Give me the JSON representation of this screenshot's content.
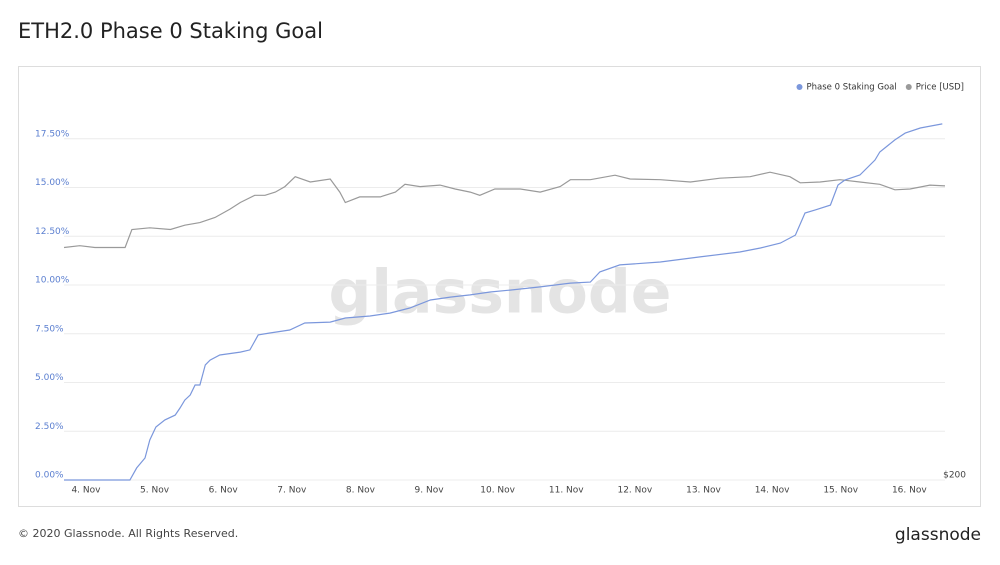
{
  "chart_data": {
    "type": "line",
    "title": "ETH2.0 Phase 0 Staking Goal",
    "watermark": "glassnode",
    "legend": "top-right",
    "grid": true,
    "xlim": [
      3.68,
      16.52
    ],
    "xticks": [
      {
        "value": 4,
        "label": "4. Nov"
      },
      {
        "value": 5,
        "label": "5. Nov"
      },
      {
        "value": 6,
        "label": "6. Nov"
      },
      {
        "value": 7,
        "label": "7. Nov"
      },
      {
        "value": 8,
        "label": "8. Nov"
      },
      {
        "value": 9,
        "label": "9. Nov"
      },
      {
        "value": 10,
        "label": "10. Nov"
      },
      {
        "value": 11,
        "label": "11. Nov"
      },
      {
        "value": 12,
        "label": "12. Nov"
      },
      {
        "value": 13,
        "label": "13. Nov"
      },
      {
        "value": 14,
        "label": "14. Nov"
      },
      {
        "value": 15,
        "label": "15. Nov"
      },
      {
        "value": 16,
        "label": "16. Nov"
      }
    ],
    "ylim": [
      0,
      20
    ],
    "yticks": [
      {
        "value": 0,
        "label": "0.00%"
      },
      {
        "value": 2.5,
        "label": "2.50%"
      },
      {
        "value": 5,
        "label": "5.00%"
      },
      {
        "value": 7.5,
        "label": "7.50%"
      },
      {
        "value": 10,
        "label": "10.00%"
      },
      {
        "value": 12.5,
        "label": "12.50%"
      },
      {
        "value": 15,
        "label": "15.00%"
      },
      {
        "value": 17.5,
        "label": "17.50%"
      }
    ],
    "y2lim": [
      200,
      600
    ],
    "y2log": true,
    "y2ticks": [
      {
        "value": 200,
        "label": "$200"
      }
    ],
    "series": [
      {
        "name": "Phase 0 Staking Goal",
        "color": "#7b97dc",
        "x": [
          3.68,
          4.64,
          4.74,
          4.86,
          4.93,
          5.02,
          5.15,
          5.3,
          5.37,
          5.44,
          5.52,
          5.59,
          5.66,
          5.74,
          5.81,
          5.95,
          6.25,
          6.39,
          6.51,
          6.68,
          6.97,
          7.19,
          7.56,
          7.78,
          8.14,
          8.43,
          8.72,
          9.02,
          9.31,
          9.6,
          9.89,
          10.18,
          10.62,
          11.06,
          11.35,
          11.49,
          11.78,
          12.37,
          12.95,
          13.53,
          13.83,
          14.12,
          14.34,
          14.48,
          14.63,
          14.85,
          14.96,
          15.06,
          15.28,
          15.5,
          15.57,
          15.79,
          15.94,
          16.16,
          16.48
        ],
        "values": [
          0,
          0,
          0.62,
          1.13,
          2.05,
          2.72,
          3.08,
          3.33,
          3.69,
          4.1,
          4.36,
          4.87,
          4.87,
          5.9,
          6.15,
          6.41,
          6.56,
          6.67,
          7.44,
          7.54,
          7.69,
          8.05,
          8.1,
          8.31,
          8.41,
          8.56,
          8.82,
          9.23,
          9.38,
          9.49,
          9.64,
          9.74,
          9.9,
          10.1,
          10.15,
          10.67,
          11.03,
          11.18,
          11.44,
          11.69,
          11.9,
          12.15,
          12.56,
          13.69,
          13.85,
          14.1,
          15.13,
          15.38,
          15.64,
          16.41,
          16.82,
          17.44,
          17.79,
          18.05,
          18.26
        ]
      },
      {
        "name": "Price [USD]",
        "color": "#9a9a9a",
        "axis": "y2",
        "x": [
          3.68,
          3.91,
          4.13,
          4.35,
          4.57,
          4.67,
          4.93,
          5.23,
          5.44,
          5.66,
          5.88,
          6.1,
          6.25,
          6.46,
          6.61,
          6.76,
          6.9,
          7.05,
          7.27,
          7.56,
          7.7,
          7.78,
          7.99,
          8.29,
          8.51,
          8.65,
          8.87,
          9.16,
          9.38,
          9.6,
          9.74,
          9.96,
          10.33,
          10.62,
          10.91,
          11.06,
          11.35,
          11.71,
          11.93,
          12.37,
          12.81,
          13.24,
          13.68,
          13.97,
          14.26,
          14.41,
          14.7,
          14.99,
          15.28,
          15.57,
          15.79,
          16.01,
          16.3,
          16.52
        ],
        "values": [
          385,
          387,
          385,
          385,
          385,
          405,
          407,
          405,
          410,
          413,
          419,
          429,
          437,
          446,
          446,
          450,
          457,
          470,
          463,
          467,
          450,
          437,
          444,
          444,
          450,
          460,
          457,
          459,
          454,
          450,
          446,
          454,
          454,
          450,
          457,
          466,
          466,
          472,
          467,
          466,
          463,
          468,
          470,
          476,
          470,
          462,
          463,
          466,
          463,
          460,
          453,
          454,
          459,
          458
        ]
      }
    ]
  },
  "footer": {
    "copyright": "© 2020 Glassnode. All Rights Reserved.",
    "logo": "glassnode"
  }
}
